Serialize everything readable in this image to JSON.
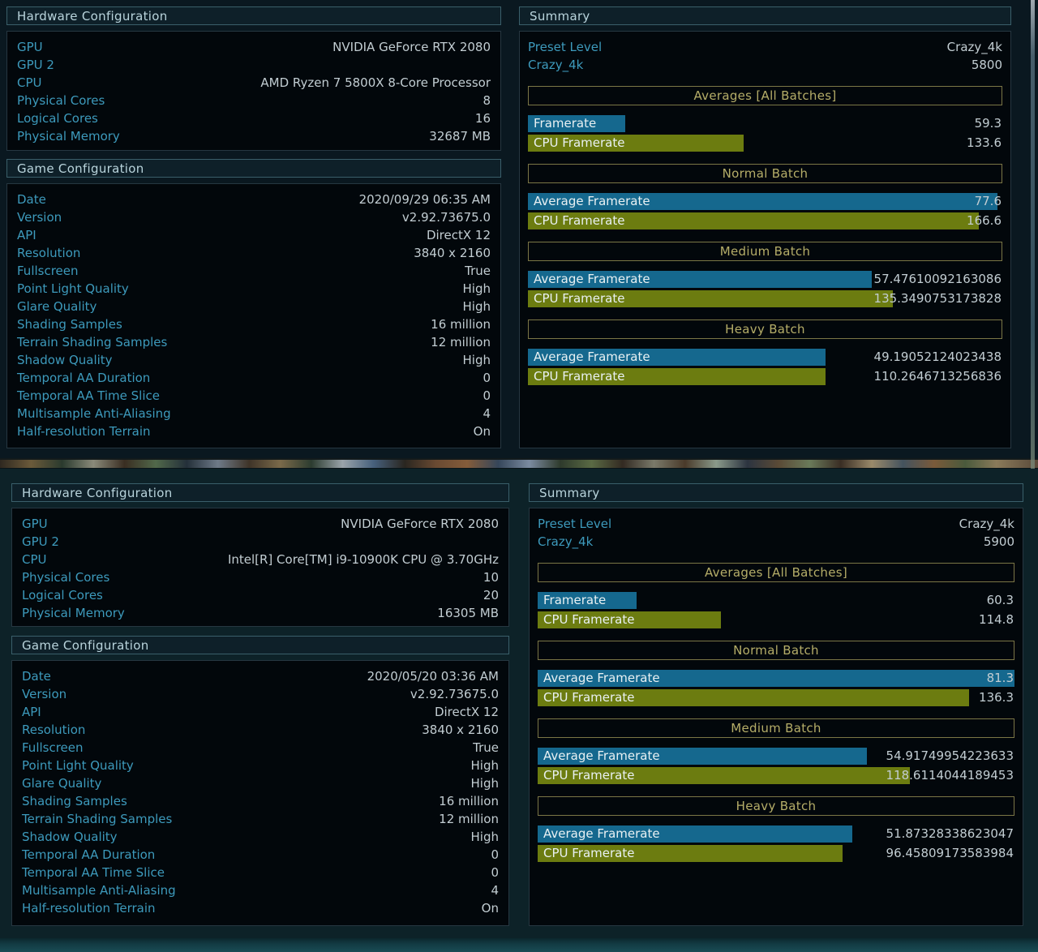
{
  "colors": {
    "bg_top": "#0a1820",
    "bg_bottom": "#0d2228",
    "box_bg": "#02070b",
    "box_border": "#263741",
    "header_bg": "#0e2029",
    "header_border": "#3a5f6a",
    "header_text": "#b9d4dc",
    "label": "#3d9abc",
    "value": "#c2cdd2",
    "gpu_bar": "#15688e",
    "cpu_bar": "#6c7c10",
    "bar_label": "#e9f1f3",
    "batch_border": "#7b7646",
    "batch_text": "#b5ad68"
  },
  "shots": [
    {
      "hardware": {
        "title": "Hardware Configuration",
        "rows": [
          {
            "label": "GPU",
            "value": "NVIDIA GeForce RTX 2080"
          },
          {
            "label": "GPU 2",
            "value": ""
          },
          {
            "label": "CPU",
            "value": "AMD Ryzen 7 5800X 8-Core Processor"
          },
          {
            "label": "Physical Cores",
            "value": "8"
          },
          {
            "label": "Logical Cores",
            "value": "16"
          },
          {
            "label": "Physical Memory",
            "value": "32687 MB"
          }
        ]
      },
      "game": {
        "title": "Game Configuration",
        "rows": [
          {
            "label": "Date",
            "value": "2020/09/29 06:35 AM"
          },
          {
            "label": "Version",
            "value": "v2.92.73675.0"
          },
          {
            "label": "API",
            "value": "DirectX 12"
          },
          {
            "label": "Resolution",
            "value": "3840 x 2160"
          },
          {
            "label": "Fullscreen",
            "value": "True"
          },
          {
            "label": "Point Light Quality",
            "value": "High"
          },
          {
            "label": "Glare Quality",
            "value": "High"
          },
          {
            "label": "Shading Samples",
            "value": "16 million"
          },
          {
            "label": "Terrain Shading Samples",
            "value": "12 million"
          },
          {
            "label": "Shadow Quality",
            "value": "High"
          },
          {
            "label": "Temporal AA Duration",
            "value": "0"
          },
          {
            "label": "Temporal AA Time Slice",
            "value": "0"
          },
          {
            "label": "Multisample Anti-Aliasing",
            "value": "4"
          },
          {
            "label": "Half-resolution Terrain",
            "value": "On"
          }
        ]
      },
      "summary": {
        "title": "Summary",
        "preset_rows": [
          {
            "label": "Preset Level",
            "value": "Crazy_4k"
          },
          {
            "label": "Crazy_4k",
            "value": "5800"
          }
        ],
        "sections": [
          {
            "title": "Averages [All Batches]",
            "bars": [
              {
                "label": "Framerate",
                "value": "59.3",
                "pct": 20.5,
                "kind": "gpu"
              },
              {
                "label": "CPU Framerate",
                "value": "133.6",
                "pct": 45.5,
                "kind": "cpu"
              }
            ]
          },
          {
            "title": "Normal Batch",
            "bars": [
              {
                "label": "Average Framerate",
                "value": "77.6",
                "pct": 99,
                "kind": "gpu"
              },
              {
                "label": "CPU Framerate",
                "value": "166.6",
                "pct": 95,
                "kind": "cpu"
              }
            ]
          },
          {
            "title": "Medium Batch",
            "bars": [
              {
                "label": "Average Framerate",
                "value": "57.47610092163086",
                "pct": 72.5,
                "kind": "gpu"
              },
              {
                "label": "CPU Framerate",
                "value": "135.3490753173828",
                "pct": 77,
                "kind": "cpu"
              }
            ]
          },
          {
            "title": "Heavy Batch",
            "bars": [
              {
                "label": "Average Framerate",
                "value": "49.19052124023438",
                "pct": 62.8,
                "kind": "gpu"
              },
              {
                "label": "CPU Framerate",
                "value": "110.2646713256836",
                "pct": 62.8,
                "kind": "cpu"
              }
            ]
          }
        ]
      }
    },
    {
      "hardware": {
        "title": "Hardware Configuration",
        "rows": [
          {
            "label": "GPU",
            "value": "NVIDIA GeForce RTX 2080"
          },
          {
            "label": "GPU 2",
            "value": ""
          },
          {
            "label": "CPU",
            "value": "Intel[R] Core[TM] i9-10900K CPU @ 3.70GHz"
          },
          {
            "label": "Physical Cores",
            "value": "10"
          },
          {
            "label": "Logical Cores",
            "value": "20"
          },
          {
            "label": "Physical Memory",
            "value": "16305 MB"
          }
        ]
      },
      "game": {
        "title": "Game Configuration",
        "rows": [
          {
            "label": "Date",
            "value": "2020/05/20 03:36 AM"
          },
          {
            "label": "Version",
            "value": "v2.92.73675.0"
          },
          {
            "label": "API",
            "value": "DirectX 12"
          },
          {
            "label": "Resolution",
            "value": "3840 x 2160"
          },
          {
            "label": "Fullscreen",
            "value": "True"
          },
          {
            "label": "Point Light Quality",
            "value": "High"
          },
          {
            "label": "Glare Quality",
            "value": "High"
          },
          {
            "label": "Shading Samples",
            "value": "16 million"
          },
          {
            "label": "Terrain Shading Samples",
            "value": "12 million"
          },
          {
            "label": "Shadow Quality",
            "value": "High"
          },
          {
            "label": "Temporal AA Duration",
            "value": "0"
          },
          {
            "label": "Temporal AA Time Slice",
            "value": "0"
          },
          {
            "label": "Multisample Anti-Aliasing",
            "value": "4"
          },
          {
            "label": "Half-resolution Terrain",
            "value": "On"
          }
        ]
      },
      "summary": {
        "title": "Summary",
        "preset_rows": [
          {
            "label": "Preset Level",
            "value": "Crazy_4k"
          },
          {
            "label": "Crazy_4k",
            "value": "5900"
          }
        ],
        "sections": [
          {
            "title": "Averages [All Batches]",
            "bars": [
              {
                "label": "Framerate",
                "value": "60.3",
                "pct": 20.7,
                "kind": "gpu"
              },
              {
                "label": "CPU Framerate",
                "value": "114.8",
                "pct": 38.5,
                "kind": "cpu"
              }
            ]
          },
          {
            "title": "Normal Batch",
            "bars": [
              {
                "label": "Average Framerate",
                "value": "81.3",
                "pct": 100,
                "kind": "gpu"
              },
              {
                "label": "CPU Framerate",
                "value": "136.3",
                "pct": 90.4,
                "kind": "cpu"
              }
            ]
          },
          {
            "title": "Medium Batch",
            "bars": [
              {
                "label": "Average Framerate",
                "value": "54.91749954223633",
                "pct": 69.1,
                "kind": "gpu"
              },
              {
                "label": "CPU Framerate",
                "value": "118.6114044189453",
                "pct": 78.1,
                "kind": "cpu"
              }
            ]
          },
          {
            "title": "Heavy Batch",
            "bars": [
              {
                "label": "Average Framerate",
                "value": "51.87328338623047",
                "pct": 66,
                "kind": "gpu"
              },
              {
                "label": "CPU Framerate",
                "value": "96.45809173583984",
                "pct": 63.9,
                "kind": "cpu"
              }
            ]
          }
        ]
      }
    }
  ]
}
